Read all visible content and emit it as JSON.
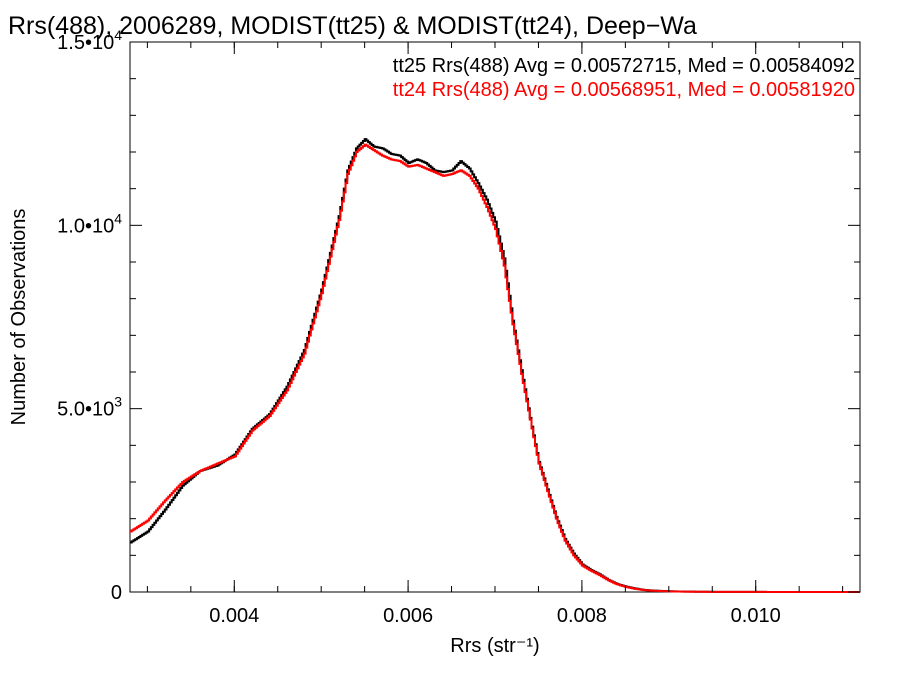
{
  "chart_data": {
    "type": "line",
    "title": "Rrs(488), 2006289, MODIST(tt25) & MODIST(tt24), Deep−Wa",
    "xlabel": "Rrs (str⁻¹)",
    "ylabel": "Number of Observations",
    "xlim": [
      0.0028,
      0.0112
    ],
    "ylim": [
      0,
      15000
    ],
    "x_ticks": [
      0.004,
      0.006,
      0.008,
      0.01
    ],
    "x_tick_labels": [
      "0.004",
      "0.006",
      "0.008",
      "0.010"
    ],
    "y_ticks": [
      0,
      5000,
      10000,
      15000
    ],
    "y_tick_labels": [
      {
        "mantissa": "0",
        "exp": ""
      },
      {
        "mantissa": "5.0•10",
        "exp": "3"
      },
      {
        "mantissa": "1.0•10",
        "exp": "4"
      },
      {
        "mantissa": "1.5•10",
        "exp": "4"
      }
    ],
    "grid": false,
    "legend_position": "top-right",
    "legend": [
      "tt25 Rrs(488) Avg = 0.00572715, Med = 0.00584092",
      "tt24 Rrs(488) Avg = 0.00568951, Med = 0.00581920"
    ],
    "series": [
      {
        "name": "tt25",
        "color": "#000000",
        "x": [
          0.0028,
          0.003,
          0.0032,
          0.0034,
          0.0036,
          0.0038,
          0.004,
          0.0042,
          0.0044,
          0.0046,
          0.0048,
          0.005,
          0.0052,
          0.0053,
          0.0054,
          0.0055,
          0.0056,
          0.0057,
          0.0058,
          0.0059,
          0.006,
          0.0061,
          0.0062,
          0.0063,
          0.0064,
          0.0065,
          0.0066,
          0.0067,
          0.0068,
          0.0069,
          0.007,
          0.0071,
          0.0072,
          0.0073,
          0.0074,
          0.0075,
          0.0076,
          0.0077,
          0.0078,
          0.0079,
          0.008,
          0.0081,
          0.0082,
          0.0083,
          0.0084,
          0.0085,
          0.0086,
          0.0087,
          0.0088,
          0.009,
          0.0092,
          0.0095,
          0.01,
          0.0105,
          0.0112
        ],
        "values": [
          1350,
          1650,
          2250,
          2900,
          3300,
          3450,
          3750,
          4450,
          4850,
          5600,
          6600,
          8250,
          10250,
          11500,
          12100,
          12350,
          12150,
          12100,
          11950,
          11900,
          11700,
          11800,
          11700,
          11500,
          11450,
          11500,
          11750,
          11550,
          11150,
          10700,
          10100,
          9100,
          7400,
          6050,
          4750,
          3550,
          2800,
          2050,
          1450,
          1050,
          750,
          600,
          480,
          330,
          220,
          150,
          100,
          60,
          40,
          20,
          10,
          5,
          2,
          1,
          0
        ]
      },
      {
        "name": "tt24",
        "color": "#ff0000",
        "x": [
          0.0028,
          0.003,
          0.0032,
          0.0034,
          0.0036,
          0.0038,
          0.004,
          0.0042,
          0.0044,
          0.0046,
          0.0048,
          0.005,
          0.0052,
          0.0053,
          0.0054,
          0.0055,
          0.0056,
          0.0057,
          0.0058,
          0.0059,
          0.006,
          0.0061,
          0.0062,
          0.0063,
          0.0064,
          0.0065,
          0.0066,
          0.0067,
          0.0068,
          0.0069,
          0.007,
          0.0071,
          0.0072,
          0.0073,
          0.0074,
          0.0075,
          0.0076,
          0.0077,
          0.0078,
          0.0079,
          0.008,
          0.0081,
          0.0082,
          0.0083,
          0.0084,
          0.0085,
          0.0086,
          0.0087,
          0.0088,
          0.009,
          0.0092,
          0.0095,
          0.01,
          0.0105,
          0.0112
        ],
        "values": [
          1650,
          1950,
          2500,
          3000,
          3300,
          3500,
          3700,
          4400,
          4800,
          5500,
          6500,
          8150,
          10150,
          11400,
          12000,
          12200,
          12050,
          11900,
          11800,
          11750,
          11600,
          11650,
          11550,
          11450,
          11350,
          11400,
          11500,
          11350,
          11000,
          10500,
          9900,
          8900,
          7300,
          5950,
          4700,
          3500,
          2750,
          2000,
          1400,
          1000,
          720,
          580,
          460,
          320,
          210,
          140,
          90,
          55,
          35,
          18,
          9,
          4,
          2,
          1,
          0
        ]
      }
    ]
  }
}
